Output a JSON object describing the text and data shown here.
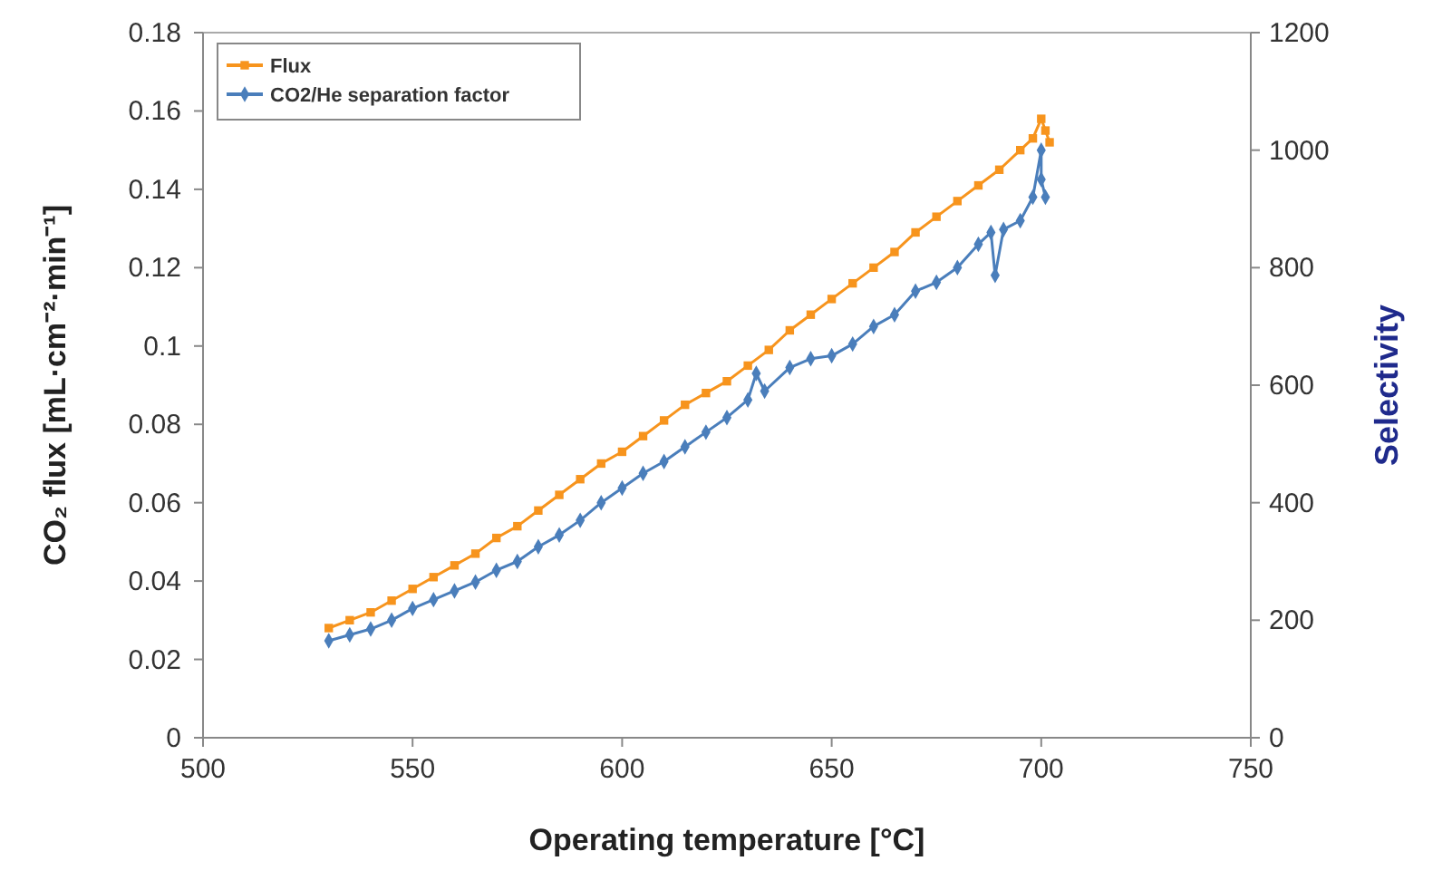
{
  "chart_data": {
    "type": "line",
    "xlabel": "Operating temperature [°C]",
    "ylabel": "CO₂ flux [mL·cm⁻²·min⁻¹]",
    "y2label": "Selectivity",
    "xlim": [
      500,
      750
    ],
    "xticks": [
      500,
      550,
      600,
      650,
      700,
      750
    ],
    "ylim": [
      0,
      0.18
    ],
    "yticks": [
      0,
      0.02,
      0.04,
      0.06,
      0.08,
      0.1,
      0.12,
      0.14,
      0.16,
      0.18
    ],
    "y2lim": [
      0,
      1200
    ],
    "y2ticks": [
      0,
      200,
      400,
      600,
      800,
      1000,
      1200
    ],
    "legend": "top left",
    "grid": false,
    "series": [
      {
        "name": "Flux",
        "color": "#f7941d",
        "marker": "square",
        "x": [
          530,
          535,
          540,
          545,
          550,
          555,
          560,
          565,
          570,
          575,
          580,
          585,
          590,
          595,
          600,
          605,
          610,
          615,
          620,
          625,
          630,
          635,
          640,
          645,
          650,
          655,
          660,
          665,
          670,
          675,
          680,
          685,
          690,
          695,
          698,
          700,
          701,
          702
        ],
        "values": [
          0.028,
          0.03,
          0.032,
          0.035,
          0.038,
          0.041,
          0.044,
          0.047,
          0.051,
          0.054,
          0.058,
          0.062,
          0.066,
          0.07,
          0.073,
          0.077,
          0.081,
          0.085,
          0.088,
          0.091,
          0.095,
          0.099,
          0.104,
          0.108,
          0.112,
          0.116,
          0.12,
          0.124,
          0.129,
          0.133,
          0.137,
          0.141,
          0.145,
          0.15,
          0.153,
          0.158,
          0.155,
          0.152
        ]
      },
      {
        "name": "CO2/He separation factor",
        "color": "#4a7ebb",
        "marker": "diamond",
        "axis": "y2",
        "x": [
          530,
          535,
          540,
          545,
          550,
          555,
          560,
          565,
          570,
          575,
          580,
          585,
          590,
          595,
          600,
          605,
          610,
          615,
          620,
          625,
          630,
          632,
          634,
          640,
          645,
          650,
          655,
          660,
          665,
          670,
          675,
          680,
          685,
          688,
          689,
          691,
          695,
          698,
          700,
          700,
          701
        ],
        "values": [
          165,
          175,
          185,
          200,
          220,
          235,
          250,
          265,
          285,
          300,
          325,
          345,
          370,
          400,
          425,
          450,
          470,
          495,
          520,
          545,
          575,
          620,
          590,
          630,
          645,
          650,
          670,
          700,
          720,
          760,
          775,
          800,
          840,
          860,
          787,
          865,
          880,
          920,
          1000,
          950,
          920
        ]
      }
    ]
  }
}
